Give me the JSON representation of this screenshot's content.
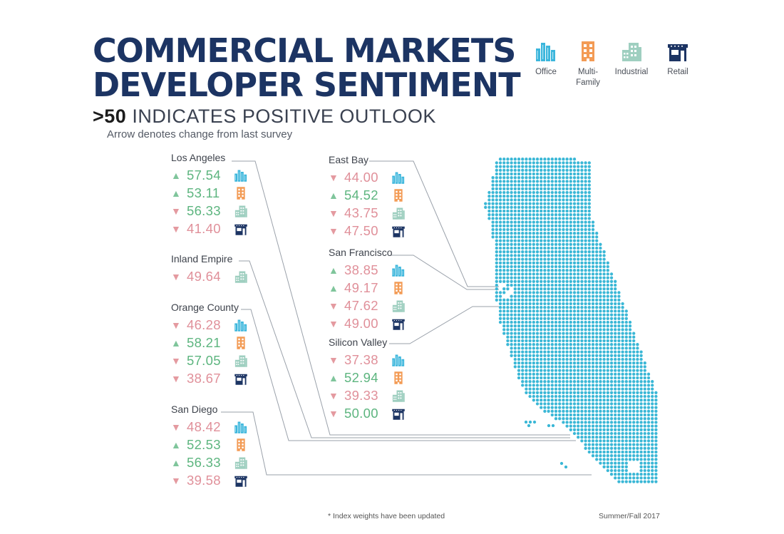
{
  "header": {
    "title_line1": "COMMERCIAL MARKETS",
    "title_line2": "DEVELOPER SENTIMENT",
    "subtitle_bold": ">50",
    "subtitle_rest": " INDICATES POSITIVE OUTLOOK",
    "note": "Arrow denotes change from last survey"
  },
  "legend": [
    {
      "icon": "office-icon",
      "label": "Office",
      "color": "#3bb6dc"
    },
    {
      "icon": "multifamily-icon",
      "label": "Multi-\nFamily",
      "color": "#f39b55"
    },
    {
      "icon": "industrial-icon",
      "label": "Industrial",
      "color": "#9fcfc0"
    },
    {
      "icon": "retail-icon",
      "label": "Retail",
      "color": "#1c3463"
    }
  ],
  "colors": {
    "title": "#1c3463",
    "positive": "#5db57f",
    "negative": "#e0909a",
    "map_dots": "#3ab7d6"
  },
  "regions": [
    {
      "key": "los-angeles",
      "name": "Los Angeles",
      "rows": [
        {
          "type": "office",
          "direction": "up",
          "value": "57.54"
        },
        {
          "type": "multifamily",
          "direction": "up",
          "value": "53.11"
        },
        {
          "type": "industrial",
          "direction": "down",
          "value": "56.33"
        },
        {
          "type": "retail",
          "direction": "down",
          "value": "41.40"
        }
      ]
    },
    {
      "key": "inland-empire",
      "name": "Inland Empire",
      "rows": [
        {
          "type": "industrial",
          "direction": "down",
          "value": "49.64"
        }
      ]
    },
    {
      "key": "orange-county",
      "name": "Orange County",
      "rows": [
        {
          "type": "office",
          "direction": "down",
          "value": "46.28"
        },
        {
          "type": "multifamily",
          "direction": "up",
          "value": "58.21"
        },
        {
          "type": "industrial",
          "direction": "down",
          "value": "57.05"
        },
        {
          "type": "retail",
          "direction": "down",
          "value": "38.67"
        }
      ]
    },
    {
      "key": "san-diego",
      "name": "San Diego",
      "rows": [
        {
          "type": "office",
          "direction": "down",
          "value": "48.42"
        },
        {
          "type": "multifamily",
          "direction": "up",
          "value": "52.53"
        },
        {
          "type": "industrial",
          "direction": "up",
          "value": "56.33"
        },
        {
          "type": "retail",
          "direction": "down",
          "value": "39.58"
        }
      ]
    },
    {
      "key": "east-bay",
      "name": "East Bay",
      "rows": [
        {
          "type": "office",
          "direction": "down",
          "value": "44.00"
        },
        {
          "type": "multifamily",
          "direction": "up",
          "value": "54.52"
        },
        {
          "type": "industrial",
          "direction": "down",
          "value": "43.75"
        },
        {
          "type": "retail",
          "direction": "down",
          "value": "47.50"
        }
      ]
    },
    {
      "key": "san-francisco",
      "name": "San Francisco",
      "rows": [
        {
          "type": "office",
          "direction": "up",
          "value": "38.85"
        },
        {
          "type": "multifamily",
          "direction": "up",
          "value": "49.17"
        },
        {
          "type": "industrial",
          "direction": "down",
          "value": "47.62"
        },
        {
          "type": "retail",
          "direction": "down",
          "value": "49.00"
        }
      ]
    },
    {
      "key": "silicon-valley",
      "name": "Silicon Valley",
      "rows": [
        {
          "type": "office",
          "direction": "down",
          "value": "37.38"
        },
        {
          "type": "multifamily",
          "direction": "up",
          "value": "52.94"
        },
        {
          "type": "industrial",
          "direction": "down",
          "value": "39.33"
        },
        {
          "type": "retail",
          "direction": "down",
          "value": "50.00"
        }
      ]
    }
  ],
  "footer": {
    "note": "* Index weights have been updated",
    "edition": "Summer/Fall 2017"
  }
}
